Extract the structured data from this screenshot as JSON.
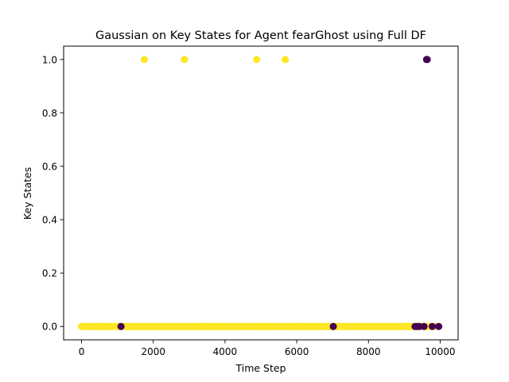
{
  "chart_data": {
    "type": "scatter",
    "title": "Gaussian on Key States for Agent fearGhost using Full DF",
    "xlabel": "Time Step",
    "ylabel": "Key States",
    "xlim": [
      -500,
      10500
    ],
    "ylim": [
      -0.05,
      1.05
    ],
    "xticks": [
      0,
      2000,
      4000,
      6000,
      8000,
      10000
    ],
    "xtick_labels": [
      "0",
      "2000",
      "4000",
      "6000",
      "8000",
      "10000"
    ],
    "yticks": [
      0.0,
      0.2,
      0.4,
      0.6,
      0.8,
      1.0
    ],
    "ytick_labels": [
      "0.0",
      "0.2",
      "0.4",
      "0.6",
      "0.8",
      "1.0"
    ],
    "grid": false,
    "legend": "none",
    "colors": {
      "cluster_yellow": "#fde725",
      "cluster_purple": "#440154"
    },
    "series": [
      {
        "color": "#fde725",
        "x_range": [
          0,
          9650
        ],
        "x_step": 20,
        "y_constant": 0.0,
        "extra_points": [
          {
            "x": 1750,
            "y": 1.0
          },
          {
            "x": 2870,
            "y": 1.0
          },
          {
            "x": 4880,
            "y": 1.0
          },
          {
            "x": 5680,
            "y": 1.0
          },
          {
            "x": 9720,
            "y": 0.0
          },
          {
            "x": 9850,
            "y": 0.0
          },
          {
            "x": 9920,
            "y": 0.0
          }
        ]
      },
      {
        "color": "#440154",
        "points": [
          {
            "x": 1100,
            "y": 0.0
          },
          {
            "x": 7020,
            "y": 0.0
          },
          {
            "x": 9300,
            "y": 0.0
          },
          {
            "x": 9340,
            "y": 0.0
          },
          {
            "x": 9380,
            "y": 0.0
          },
          {
            "x": 9420,
            "y": 0.0
          },
          {
            "x": 9550,
            "y": 0.0
          },
          {
            "x": 9780,
            "y": 0.0
          },
          {
            "x": 9960,
            "y": 0.0
          },
          {
            "x": 9620,
            "y": 1.0
          },
          {
            "x": 9640,
            "y": 1.0
          }
        ]
      }
    ]
  }
}
